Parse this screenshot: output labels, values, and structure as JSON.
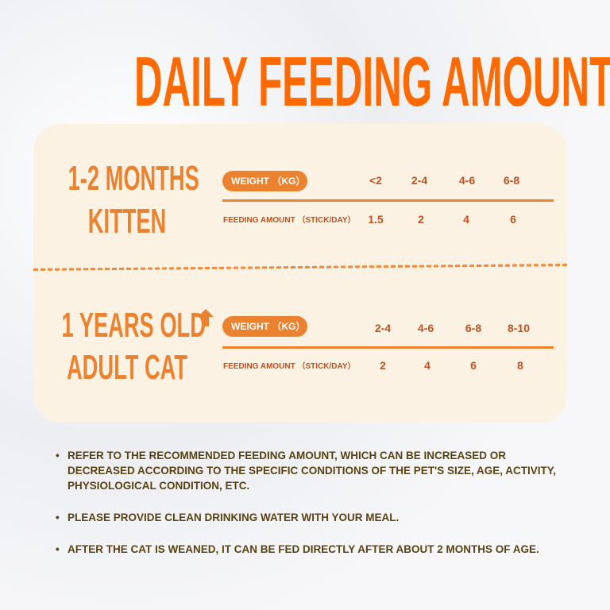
{
  "title": "DAILY FEEDING AMOUNT",
  "kitten": {
    "line1": "1-2 MONTHS",
    "line2": "KITTEN",
    "weight_label": "WEIGHT （KG）",
    "feeding_label": "FEEDING AMOUNT （STICK/DAY）",
    "weights": [
      "<2",
      "2-4",
      "4-6",
      "6-8"
    ],
    "amounts": [
      "1.5",
      "2",
      "4",
      "6"
    ]
  },
  "adult": {
    "line1": "1 YEARS OLD",
    "line2": "ADULT CAT",
    "arrow_icon": "up-arrow-icon",
    "weight_label": "WEIGHT （KG）",
    "feeding_label": "FEEDING AMOUNT （STICK/DAY）",
    "weights": [
      "2-4",
      "4-6",
      "6-8",
      "8-10"
    ],
    "amounts": [
      "2",
      "4",
      "6",
      "8"
    ]
  },
  "notes": [
    "REFER TO THE RECOMMENDED FEEDING AMOUNT, WHICH CAN BE INCREASED OR DECREASED ACCORDING TO THE SPECIFIC CONDITIONS OF THE PET'S SIZE, AGE, ACTIVITY, PHYSIOLOGICAL CONDITION, ETC.",
    "PLEASE PROVIDE CLEAN DRINKING WATER WITH YOUR MEAL.",
    "AFTER THE CAT IS WEANED, IT CAN BE FED DIRECTLY AFTER ABOUT 2 MONTHS OF AGE."
  ],
  "colors": {
    "title": "#ff6a00",
    "accent": "#ea8230",
    "table_text": "#c0521f",
    "notes": "#5a4213",
    "panel": "#fcf1e3"
  }
}
